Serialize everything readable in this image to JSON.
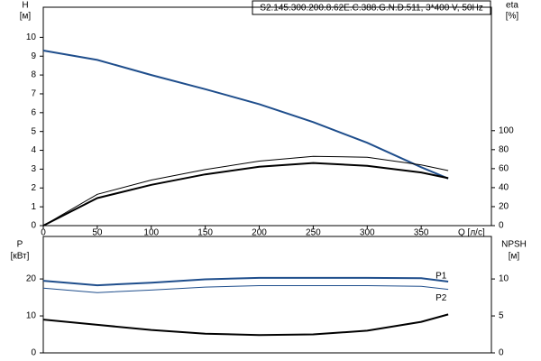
{
  "chart_data": [
    {
      "type": "line",
      "title": "S2.145.300.200.8.62E.C.388.G.N.D.511, 3*400 V, 50Hz",
      "y_label": "H",
      "y_unit": "[м]",
      "y2_label": "eta",
      "y2_unit": "[%]",
      "x_label": "Q [л/с]",
      "x": [
        0,
        50,
        100,
        150,
        200,
        250,
        300,
        350,
        375
      ],
      "xlim": [
        0,
        415
      ],
      "xticks": [
        0,
        50,
        100,
        150,
        200,
        250,
        300,
        350
      ],
      "ylim": [
        0,
        11.6
      ],
      "yticks": [
        0,
        1,
        2,
        3,
        4,
        5,
        6,
        7,
        8,
        9,
        10
      ],
      "y2lim": [
        0,
        230
      ],
      "y2ticks": [
        0,
        20,
        40,
        60,
        80,
        100
      ],
      "series": [
        {
          "color": "#1f4e8c",
          "width": 2,
          "values": [
            9.3,
            8.8,
            8.0,
            7.25,
            6.45,
            5.5,
            4.4,
            3.1,
            2.5
          ]
        },
        {
          "color": "#000000",
          "width": 1,
          "axis": "y2",
          "values": [
            0,
            33,
            48,
            59,
            68,
            73,
            72,
            64,
            58
          ]
        },
        {
          "color": "#000000",
          "width": 2,
          "axis": "y2",
          "values": [
            0,
            29,
            43,
            54,
            62,
            66,
            63,
            56,
            50
          ]
        }
      ]
    },
    {
      "type": "line",
      "y_label": "P",
      "y_unit": "[кВт]",
      "y2_label": "NPSH",
      "y2_unit": "[м]",
      "x": [
        0,
        50,
        100,
        150,
        200,
        250,
        300,
        350,
        375
      ],
      "xlim": [
        0,
        415
      ],
      "ylim": [
        0,
        31.5
      ],
      "yticks": [
        0,
        10,
        20
      ],
      "y2lim": [
        0,
        15.75
      ],
      "y2ticks": [
        0,
        5,
        10
      ],
      "series": [
        {
          "name": "P1",
          "color": "#1f4e8c",
          "width": 2,
          "values": [
            19.5,
            18.3,
            19.0,
            19.9,
            20.3,
            20.3,
            20.3,
            20.2,
            19.3
          ]
        },
        {
          "name": "P2",
          "color": "#1f4e8c",
          "width": 1,
          "values": [
            17.5,
            16.3,
            17.0,
            17.8,
            18.2,
            18.2,
            18.2,
            18.0,
            17.2
          ]
        },
        {
          "color": "#000000",
          "width": 2,
          "axis": "y2",
          "values": [
            4.5,
            3.8,
            3.1,
            2.6,
            2.4,
            2.5,
            3.0,
            4.2,
            5.2
          ]
        }
      ]
    }
  ]
}
